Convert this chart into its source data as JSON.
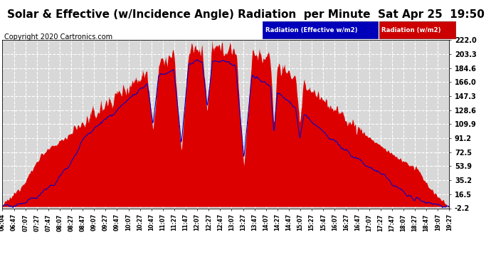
{
  "title": "Solar & Effective (w/Incidence Angle) Radiation  per Minute  Sat Apr 25  19:50",
  "copyright": "Copyright 2020 Cartronics.com",
  "legend_label_blue": "Radiation (Effective w/m2)",
  "legend_label_red": "Radiation (w/m2)",
  "yticks": [
    222.0,
    203.3,
    184.6,
    166.0,
    147.3,
    128.6,
    109.9,
    91.2,
    72.5,
    53.9,
    35.2,
    16.5,
    -2.2
  ],
  "ymin": -2.2,
  "ymax": 222.0,
  "bg_color": "#ffffff",
  "plot_bg_color": "#d8d8d8",
  "grid_color": "#ffffff",
  "fill_color": "#dd0000",
  "line_color": "#0000cc",
  "title_fontsize": 11,
  "copyright_fontsize": 7,
  "xtick_labels": [
    "06:04",
    "06:47",
    "07:07",
    "07:27",
    "07:47",
    "08:07",
    "08:27",
    "08:47",
    "09:07",
    "09:27",
    "09:47",
    "10:07",
    "10:27",
    "10:47",
    "11:07",
    "11:27",
    "11:47",
    "12:07",
    "12:27",
    "12:47",
    "13:07",
    "13:27",
    "13:47",
    "14:07",
    "14:27",
    "14:47",
    "15:07",
    "15:27",
    "15:47",
    "16:07",
    "16:27",
    "16:47",
    "17:07",
    "17:27",
    "17:47",
    "18:07",
    "18:27",
    "18:47",
    "19:07",
    "19:27"
  ],
  "num_points": 836
}
